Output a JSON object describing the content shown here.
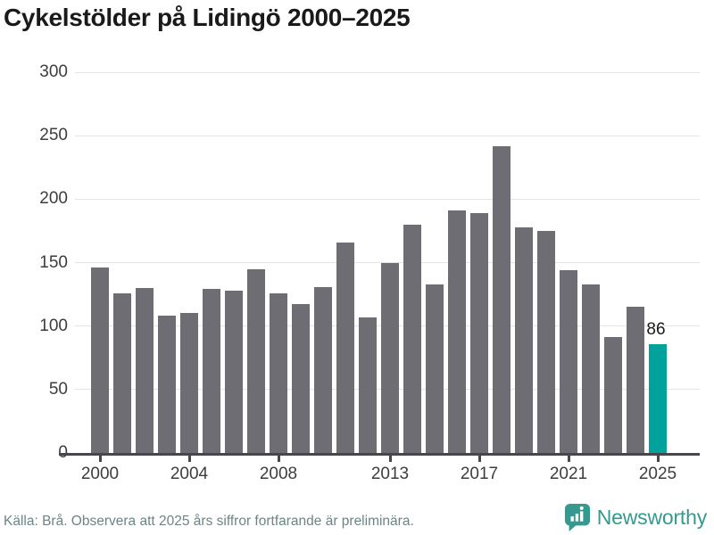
{
  "title": "Cykelstölder på Lidingö 2000–2025",
  "chart_data": {
    "type": "bar",
    "title": "Cykelstölder på Lidingö 2000–2025",
    "xlabel": "",
    "ylabel": "",
    "categories": [
      2000,
      2001,
      2002,
      2003,
      2004,
      2005,
      2006,
      2007,
      2008,
      2009,
      2010,
      2011,
      2012,
      2013,
      2014,
      2015,
      2016,
      2017,
      2018,
      2019,
      2020,
      2021,
      2022,
      2023,
      2024,
      2025
    ],
    "values": [
      146,
      126,
      130,
      108,
      110,
      129,
      128,
      145,
      126,
      117,
      131,
      166,
      107,
      150,
      180,
      133,
      191,
      189,
      242,
      178,
      175,
      144,
      133,
      91,
      115,
      86
    ],
    "ylim": [
      0,
      300
    ],
    "yticks": [
      0,
      50,
      100,
      150,
      200,
      250,
      300
    ],
    "xticks": [
      2000,
      2004,
      2008,
      2013,
      2017,
      2021,
      2025
    ],
    "grid": true,
    "legend": "none",
    "bar_color": "#6d6d73",
    "highlight": {
      "index": 25,
      "category": 2025,
      "value": 86,
      "color": "#00a29b",
      "label": "86"
    }
  },
  "footer": {
    "source": "Källa: Brå. Observera att 2025 års siffror fortfarande är preliminära.",
    "brand": "Newsworthy"
  },
  "colors": {
    "title_text": "#1a1a1a",
    "axis_label": "#3d3d3d",
    "gridline": "#e4e4e4",
    "axis_line": "#46464b",
    "source_text": "#6d8484",
    "brand_teal": "#35998f"
  }
}
